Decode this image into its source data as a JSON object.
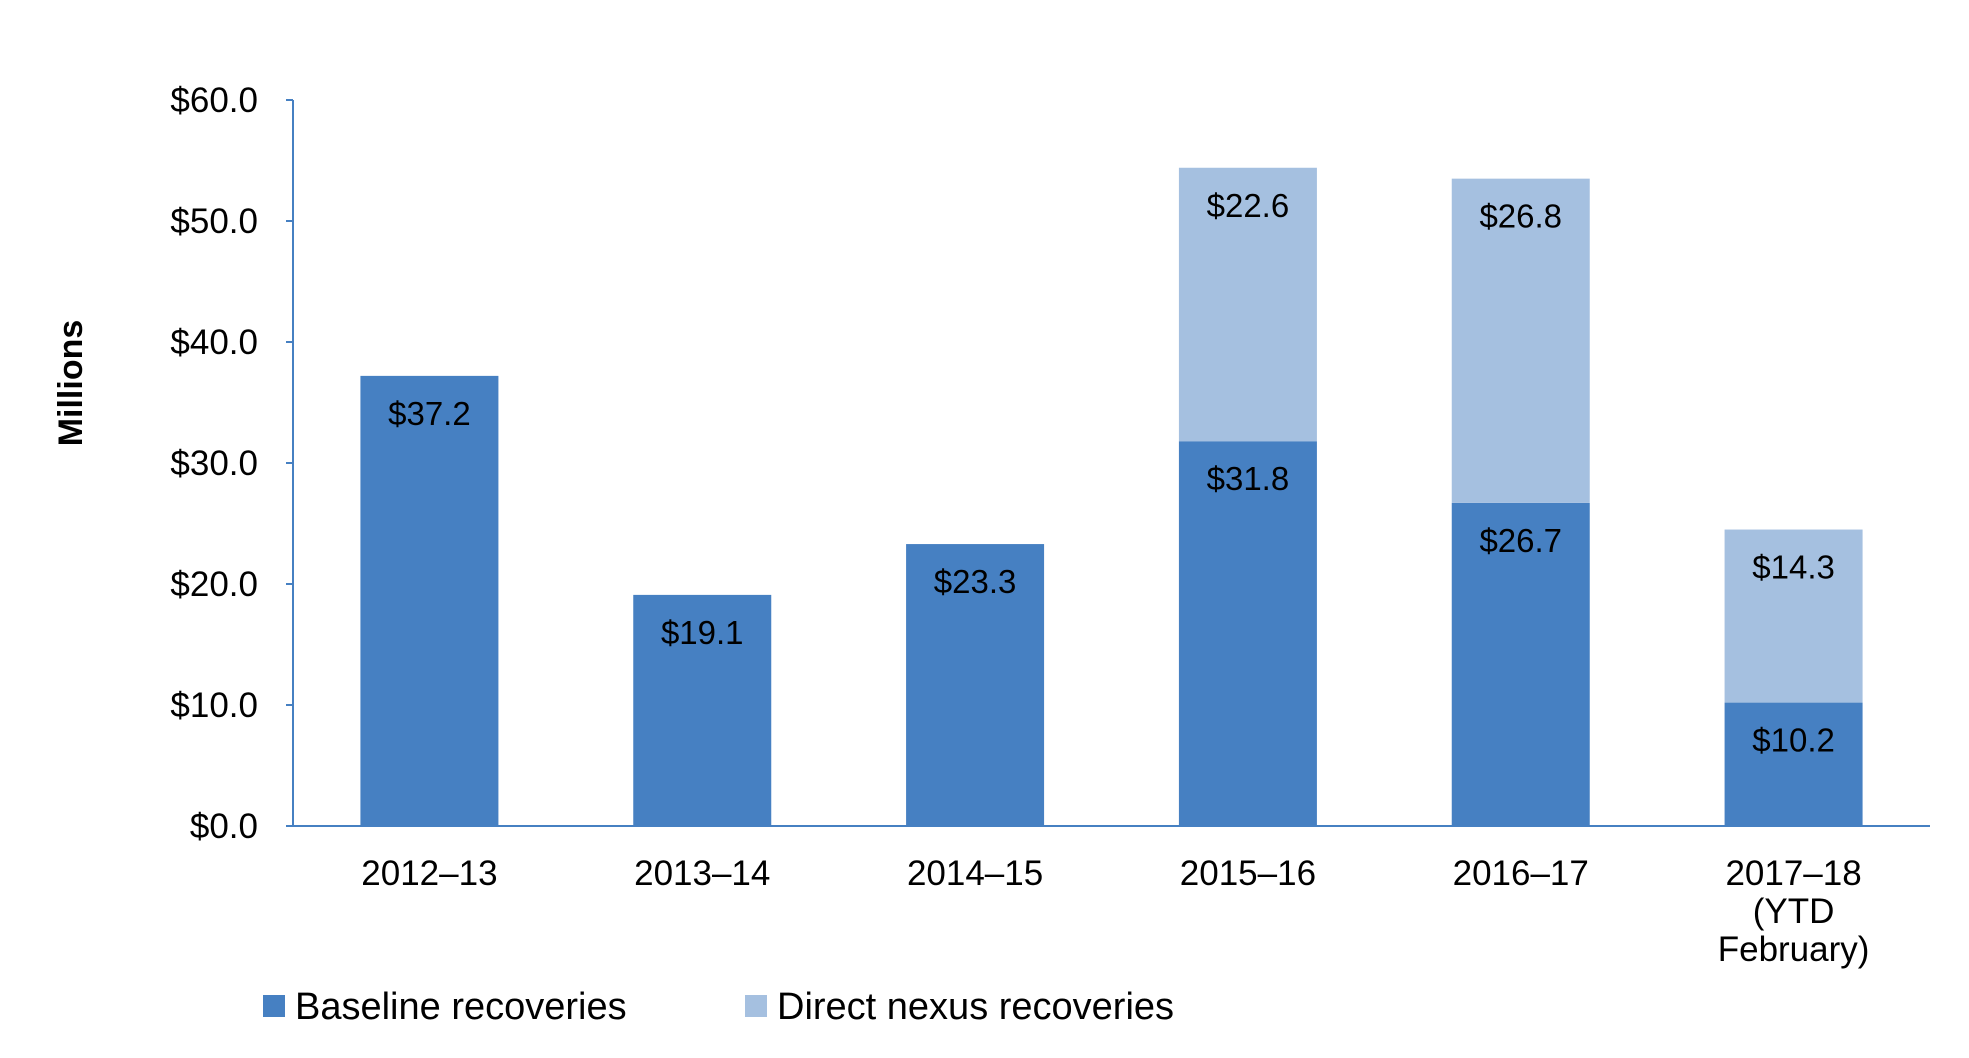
{
  "chart_data": {
    "type": "bar",
    "stacked": true,
    "title": "",
    "xlabel": "",
    "ylabel": "Millions",
    "ylim": [
      0,
      60
    ],
    "yticks": [
      0,
      10,
      20,
      30,
      40,
      50,
      60
    ],
    "ytick_labels": [
      "$0.0",
      "$10.0",
      "$20.0",
      "$30.0",
      "$40.0",
      "$50.0",
      "$60.0"
    ],
    "categories": [
      [
        "2012–13"
      ],
      [
        "2013–14"
      ],
      [
        "2014–15"
      ],
      [
        "2015–16"
      ],
      [
        "2016–17"
      ],
      [
        "2017–18",
        "(YTD",
        "February)"
      ]
    ],
    "series": [
      {
        "name": "Baseline recoveries",
        "color": "#4680C2",
        "values": [
          37.2,
          19.1,
          23.3,
          31.8,
          26.7,
          10.2
        ],
        "labels": [
          "$37.2",
          "$19.1",
          "$23.3",
          "$31.8",
          "$26.7",
          "$10.2"
        ]
      },
      {
        "name": "Direct nexus recoveries",
        "color": "#A5C0E0",
        "values": [
          null,
          null,
          null,
          22.6,
          26.8,
          14.3
        ],
        "labels": [
          null,
          null,
          null,
          "$22.6",
          "$26.8",
          "$14.3"
        ]
      }
    ],
    "grid": false,
    "legend_position": "bottom-left",
    "axis_color": "#4680C2"
  }
}
